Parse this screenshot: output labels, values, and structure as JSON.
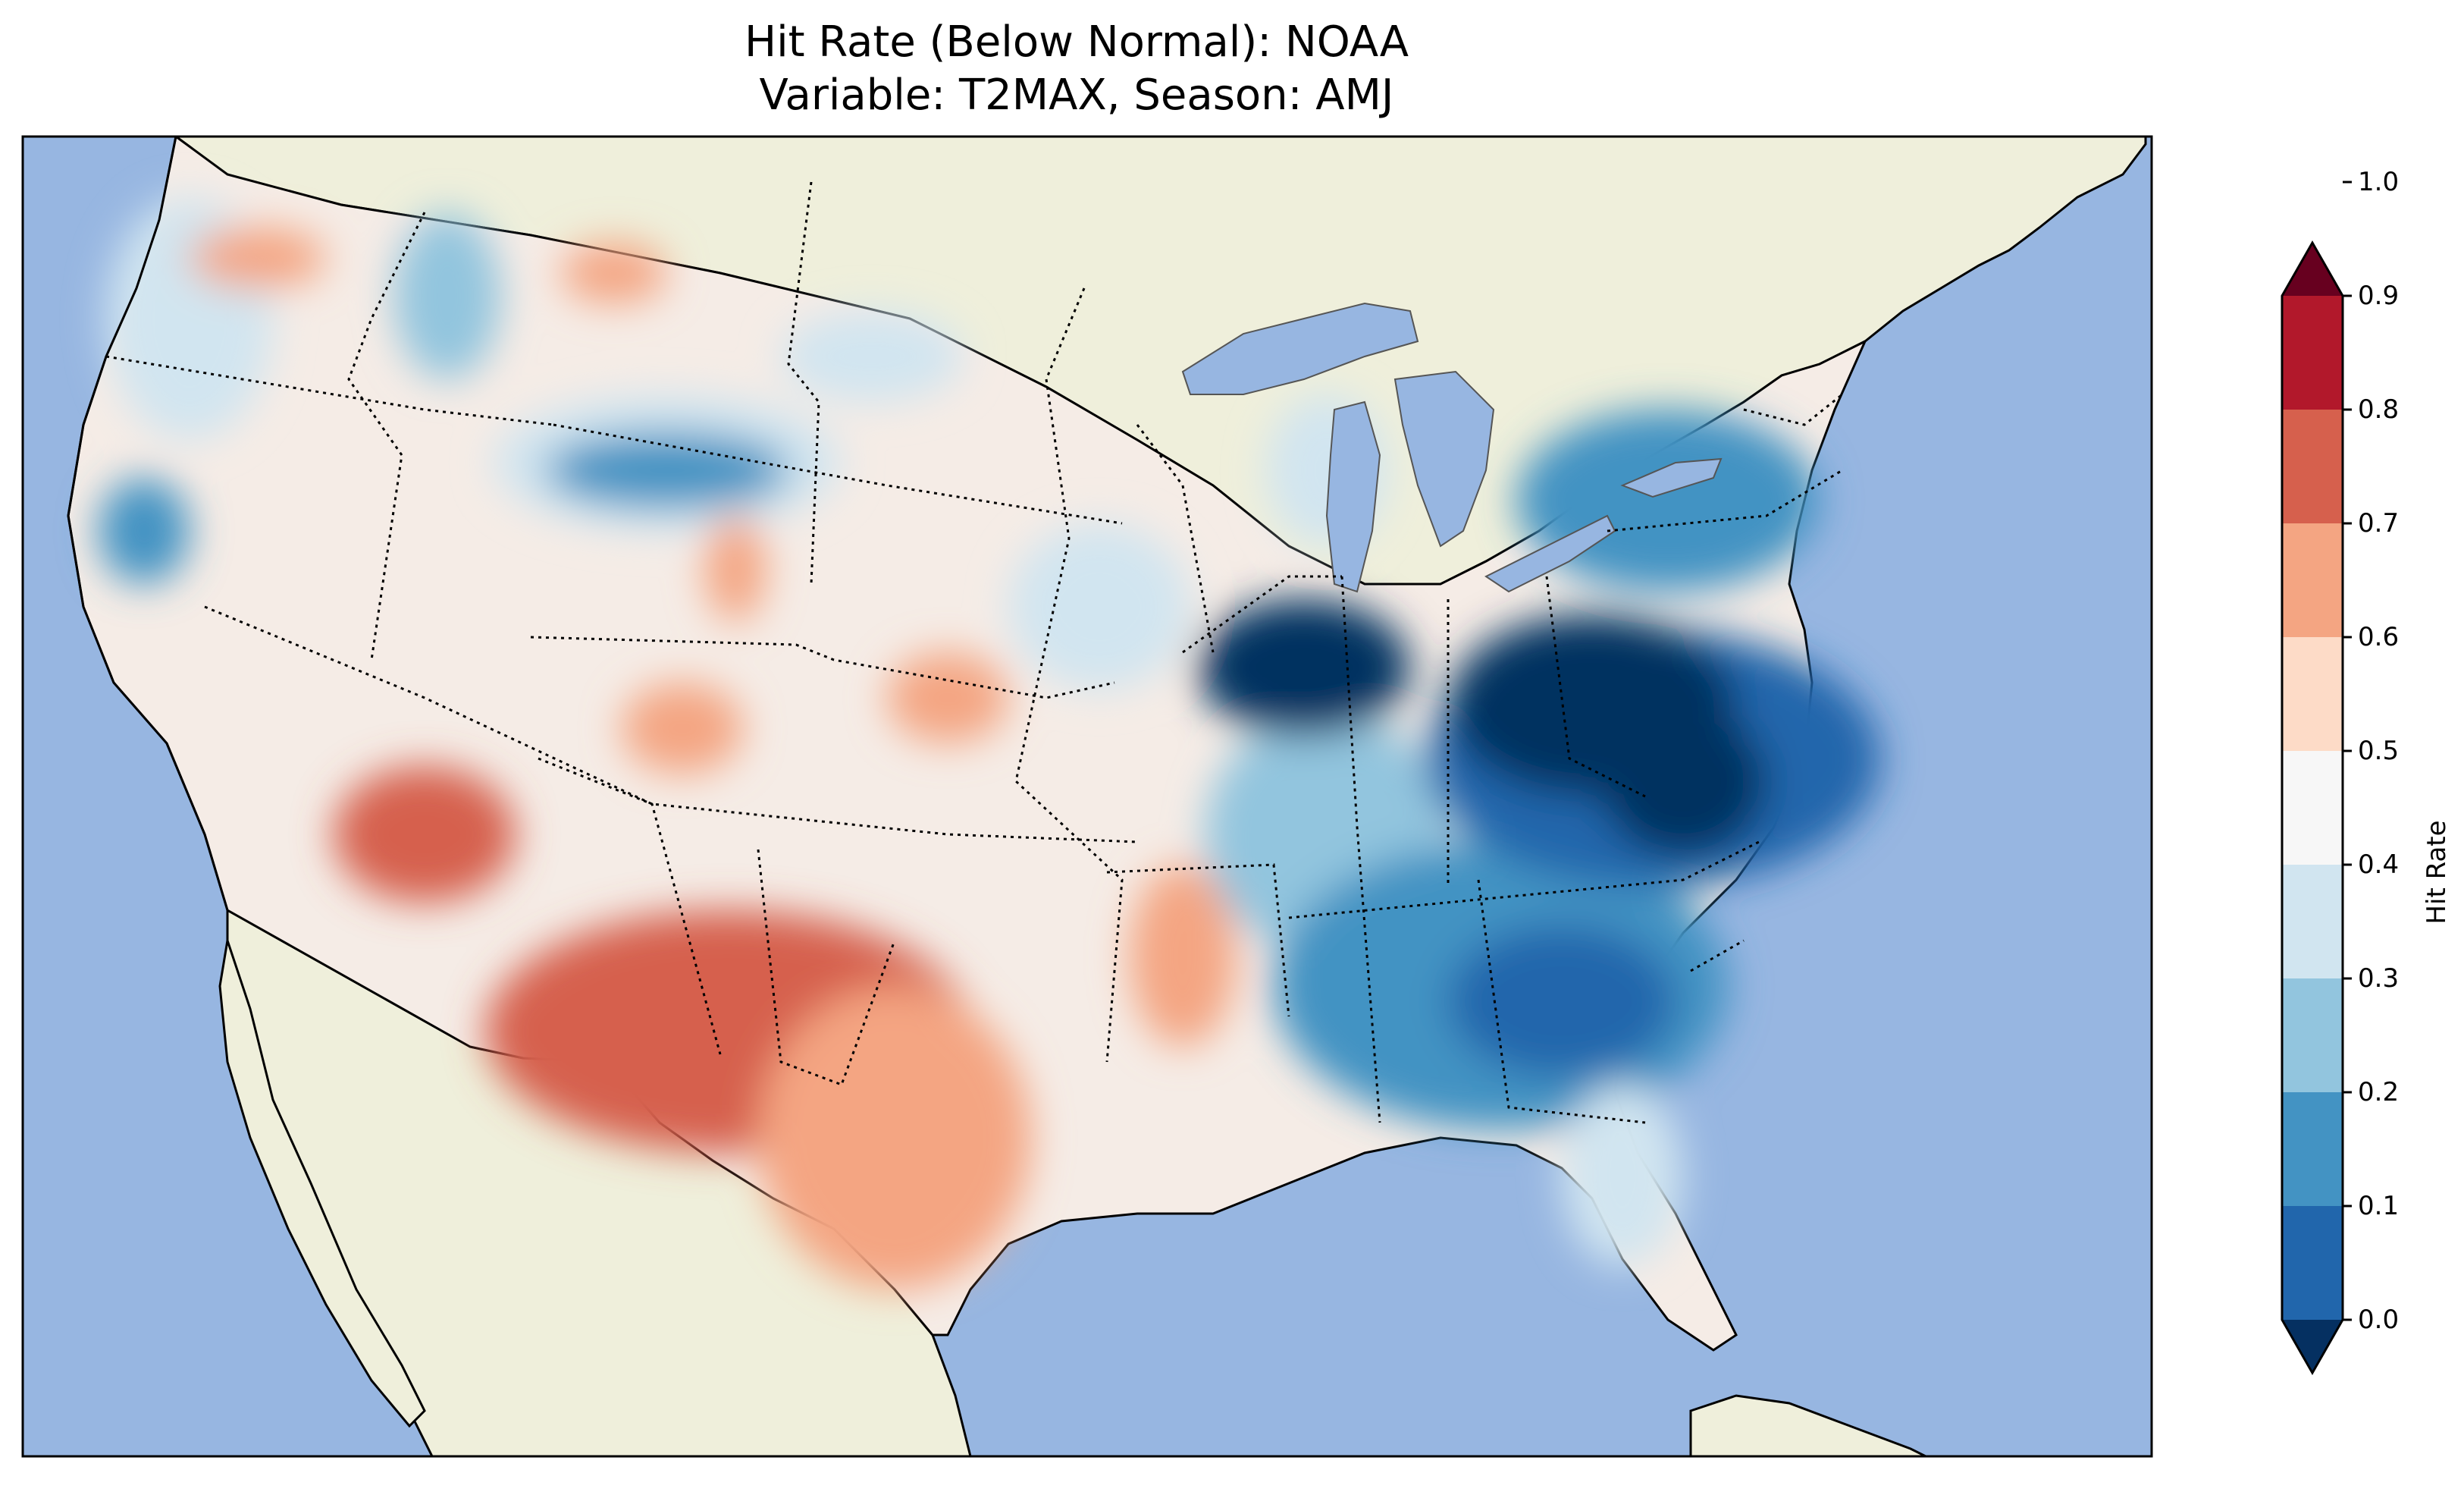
{
  "title": {
    "line1": "Hit Rate (Below Normal): NOAA",
    "line2": "Variable: T2MAX, Season: AMJ"
  },
  "colorbar": {
    "label": "Hit Rate",
    "ticks": [
      "0.0",
      "0.1",
      "0.2",
      "0.3",
      "0.4",
      "0.5",
      "0.6",
      "0.7",
      "0.8",
      "0.9",
      "1.0"
    ],
    "colors": [
      "#053061",
      "#2166ac",
      "#4393c3",
      "#92c5de",
      "#d1e5f0",
      "#f7f7f7",
      "#fddbc7",
      "#f4a582",
      "#d6604d",
      "#b2182b",
      "#67001f"
    ],
    "extend": "both",
    "range": [
      0.0,
      1.0
    ],
    "bin_width": 0.1
  },
  "map": {
    "region": "Contiguous United States",
    "ocean_color": "#97b6e1",
    "land_color": "#efefdb",
    "borders": "state borders dotted, coastlines solid",
    "pattern": "below-normal hit rates highest (0.6–0.8) over Texas, New Mexico and Arizona; lowest (0.0–0.1) over the Ohio Valley, West Virginia, Virginia and North Carolina; mostly 0.4–0.6 elsewhere in the west and plains"
  }
}
